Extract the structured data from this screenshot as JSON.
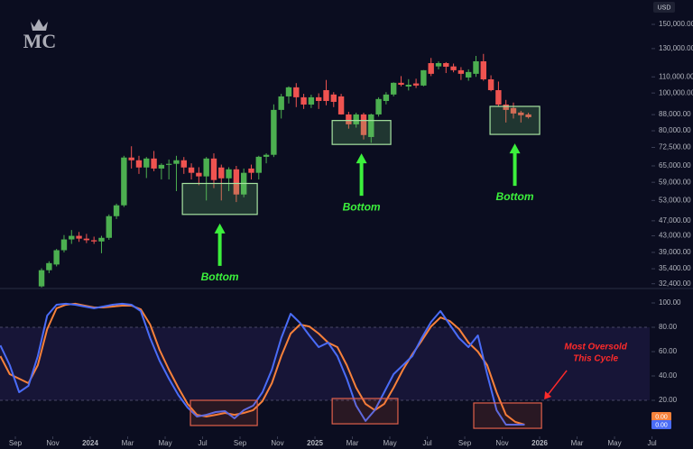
{
  "chart_data": [
    {
      "type": "candlestick",
      "logo": "MC",
      "currency": "USD",
      "log_scale": true,
      "colors": {
        "up": "#4caf50",
        "down": "#ef5350"
      },
      "xlim": [
        -4.82,
        32.19
      ],
      "ylim": [
        31500,
        166000
      ],
      "yticks": [
        {
          "value": 150000,
          "label": "150,000.00"
        },
        {
          "value": 130000,
          "label": "130,000.00"
        },
        {
          "value": 110000,
          "label": "110,000.00"
        },
        {
          "value": 100000,
          "label": "100,000.00"
        },
        {
          "value": 88000,
          "label": "88,000.00"
        },
        {
          "value": 80000,
          "label": "80,000.00"
        },
        {
          "value": 72500,
          "label": "72,500.00"
        },
        {
          "value": 65000,
          "label": "65,000.00"
        },
        {
          "value": 59000,
          "label": "59,000.00"
        },
        {
          "value": 53000,
          "label": "53,000.00"
        },
        {
          "value": 47000,
          "label": "47,000.00"
        },
        {
          "value": 43000,
          "label": "43,000.00"
        },
        {
          "value": 39000,
          "label": "39,000.00"
        },
        {
          "value": 35400,
          "label": "35,400.00"
        },
        {
          "value": 32400,
          "label": "32,400.00"
        }
      ],
      "x": [
        -2.6,
        -2.2,
        -1.8,
        -1.4,
        -1.0,
        -0.6,
        -0.2,
        0.2,
        0.6,
        1.0,
        1.4,
        1.8,
        2.2,
        2.6,
        3.0,
        3.4,
        3.8,
        4.2,
        4.6,
        5.0,
        5.4,
        5.8,
        6.2,
        6.6,
        7.0,
        7.4,
        7.8,
        8.2,
        8.6,
        9.0,
        9.4,
        9.8,
        10.2,
        10.6,
        11.0,
        11.4,
        11.8,
        12.2,
        12.6,
        13.0,
        13.4,
        13.8,
        14.2,
        14.6,
        15.0,
        15.4,
        15.8,
        16.2,
        16.6,
        17.0,
        17.4,
        17.8,
        18.2,
        18.6,
        19.0,
        19.4,
        19.8,
        20.2,
        20.6,
        21.0,
        21.4,
        21.8,
        22.2,
        22.6,
        23.0,
        23.4
      ],
      "open": [
        31900,
        35100,
        36300,
        39500,
        42100,
        43000,
        42300,
        41900,
        41600,
        42500,
        48300,
        51500,
        68300,
        67200,
        64400,
        67900,
        64000,
        65400,
        65800,
        67200,
        64400,
        62400,
        61100,
        67900,
        64400,
        60400,
        63700,
        54900,
        64000,
        62400,
        68600,
        69400,
        90500,
        98000,
        103400,
        97500,
        93400,
        97500,
        101700,
        99100,
        98000,
        88100,
        83100,
        88100,
        77100,
        88100,
        95400,
        99100,
        106200,
        103900,
        105800,
        104500,
        119300,
        117000,
        119300,
        117000,
        114400,
        109600,
        112000,
        120600,
        108400,
        101700,
        93400,
        91500,
        89100,
        88100
      ],
      "high": [
        35500,
        37000,
        39800,
        43200,
        44500,
        44000,
        43500,
        42800,
        43000,
        48800,
        52000,
        69000,
        73000,
        69000,
        68500,
        71000,
        66000,
        67500,
        69000,
        68500,
        66000,
        64500,
        68500,
        70000,
        65500,
        64500,
        65000,
        64000,
        65500,
        69000,
        70000,
        93500,
        99500,
        104000,
        106000,
        99500,
        99000,
        99800,
        108000,
        100500,
        99500,
        89500,
        89000,
        89000,
        88500,
        97500,
        100500,
        106500,
        110500,
        108500,
        108800,
        114500,
        123000,
        120500,
        120000,
        119000,
        116500,
        115000,
        124500,
        126000,
        111000,
        107000,
        96000,
        94500,
        90000,
        89000
      ],
      "low": [
        31700,
        34500,
        35900,
        39000,
        41000,
        41500,
        41200,
        41000,
        38800,
        42000,
        47500,
        51000,
        64000,
        62000,
        60500,
        63000,
        60000,
        60000,
        56000,
        62000,
        60000,
        58000,
        53000,
        57000,
        53000,
        56000,
        52500,
        54000,
        60000,
        60000,
        66000,
        68500,
        86000,
        94000,
        92000,
        91000,
        91500,
        91000,
        93000,
        92000,
        88000,
        81000,
        81500,
        76000,
        74500,
        87000,
        93500,
        98000,
        104000,
        101500,
        103000,
        104000,
        110500,
        115000,
        112500,
        113000,
        108000,
        107500,
        110000,
        107500,
        101000,
        92500,
        84000,
        86000,
        84000,
        86000
      ],
      "close": [
        35100,
        36600,
        39500,
        42100,
        43000,
        42300,
        41900,
        41600,
        42500,
        48300,
        51500,
        68300,
        67200,
        64400,
        67900,
        64000,
        65400,
        65800,
        67200,
        64400,
        62400,
        61100,
        67900,
        59800,
        60400,
        63700,
        54900,
        62400,
        62400,
        68600,
        69400,
        90500,
        98000,
        103400,
        97500,
        93400,
        97500,
        95400,
        95400,
        94900,
        88100,
        83100,
        88100,
        78000,
        88100,
        96500,
        99100,
        106200,
        105000,
        105000,
        104500,
        114400,
        112000,
        119300,
        116800,
        114400,
        112000,
        113200,
        120600,
        108400,
        101700,
        93400,
        90500,
        88600,
        87700,
        86700
      ],
      "annotations": [
        {
          "text": "Bottom",
          "color": "#3cf03c",
          "x": [
            4.92,
            8.92
          ],
          "y": [
            48800,
            58600
          ]
        },
        {
          "text": "Bottom",
          "color": "#3cf03c",
          "x": [
            12.92,
            16.05
          ],
          "y": [
            73800,
            85000
          ]
        },
        {
          "text": "Bottom",
          "color": "#3cf03c",
          "x": [
            21.35,
            24.0
          ],
          "y": [
            78300,
            92400
          ]
        }
      ]
    },
    {
      "type": "line",
      "xlim": [
        -4.82,
        32.19
      ],
      "ylim": [
        -9.63,
        111.85
      ],
      "yticks": [
        {
          "value": 100,
          "label": "100.00"
        },
        {
          "value": 80,
          "label": "80.00"
        },
        {
          "value": 60,
          "label": "60.00"
        },
        {
          "value": 40,
          "label": "40.00"
        },
        {
          "value": 20,
          "label": "20.00"
        }
      ],
      "band": [
        20,
        80
      ],
      "xticks": [
        {
          "value": -4,
          "label": "Sep"
        },
        {
          "value": -2,
          "label": "Nov"
        },
        {
          "value": 0,
          "label": "2024"
        },
        {
          "value": 2,
          "label": "Mar"
        },
        {
          "value": 4,
          "label": "May"
        },
        {
          "value": 6,
          "label": "Jul"
        },
        {
          "value": 8,
          "label": "Sep"
        },
        {
          "value": 10,
          "label": "Nov"
        },
        {
          "value": 12,
          "label": "2025"
        },
        {
          "value": 14,
          "label": "Mar"
        },
        {
          "value": 16,
          "label": "May"
        },
        {
          "value": 18,
          "label": "Jul"
        },
        {
          "value": 20,
          "label": "Sep"
        },
        {
          "value": 22,
          "label": "Nov"
        },
        {
          "value": 24,
          "label": "2026"
        },
        {
          "value": 26,
          "label": "Mar"
        },
        {
          "value": 28,
          "label": "May"
        },
        {
          "value": 30,
          "label": "Jul"
        }
      ],
      "x": [
        -4.8,
        -4.3,
        -3.8,
        -3.3,
        -2.8,
        -2.3,
        -1.8,
        -1.3,
        -0.8,
        -0.3,
        0.2,
        0.7,
        1.2,
        1.7,
        2.2,
        2.7,
        3.2,
        3.7,
        4.2,
        4.7,
        5.2,
        5.7,
        6.2,
        6.7,
        7.2,
        7.7,
        8.2,
        8.7,
        9.2,
        9.7,
        10.2,
        10.7,
        11.2,
        11.7,
        12.2,
        12.7,
        13.2,
        13.7,
        14.2,
        14.7,
        15.2,
        15.7,
        16.2,
        16.7,
        17.2,
        17.7,
        18.2,
        18.7,
        19.2,
        19.7,
        20.2,
        20.7,
        21.2,
        21.7,
        22.2,
        22.7,
        23.2
      ],
      "series": [
        {
          "color": "#f7813a",
          "values": [
            56.3,
            41.5,
            37.8,
            34.1,
            48.9,
            78.5,
            95.6,
            98.5,
            99.3,
            97.8,
            96.3,
            96.3,
            97.0,
            97.8,
            97.8,
            94.8,
            82.2,
            61.5,
            45.2,
            30.4,
            17.0,
            8.1,
            6.7,
            8.1,
            9.6,
            8.1,
            9.6,
            11.9,
            19.3,
            34.1,
            56.3,
            74.8,
            82.2,
            80.7,
            74.8,
            67.4,
            63.7,
            48.9,
            30.4,
            17.0,
            11.9,
            17.0,
            30.4,
            45.2,
            57.8,
            68.9,
            80.7,
            88.1,
            85.2,
            78.5,
            67.4,
            60.0,
            48.9,
            26.7,
            8.1,
            2.2,
            0
          ],
          "value_labels": [
            null,
            null,
            null,
            null,
            null,
            null,
            null,
            null,
            null,
            null,
            null,
            null,
            null,
            null,
            null,
            null,
            null,
            null,
            null,
            null,
            null,
            null,
            null,
            null,
            null,
            null,
            null,
            null,
            null,
            null,
            null,
            null,
            null,
            null,
            null,
            null,
            null,
            null,
            null,
            null,
            null,
            null,
            null,
            null,
            null,
            null,
            null,
            null,
            null,
            null,
            null,
            null,
            null,
            null,
            null,
            null,
            "0.00"
          ]
        },
        {
          "color": "#4a6cf7",
          "values": [
            65.2,
            48.9,
            26.7,
            31.9,
            56.3,
            89.6,
            98.5,
            99.3,
            98.5,
            97.0,
            95.6,
            97.0,
            98.5,
            99.3,
            98.5,
            93.3,
            71.1,
            52.6,
            37.8,
            24.4,
            14.1,
            6.7,
            8.1,
            10.4,
            11.1,
            5.2,
            11.9,
            15.6,
            26.7,
            45.2,
            71.1,
            91.1,
            83.7,
            73.3,
            63.7,
            67.4,
            56.3,
            37.8,
            15.6,
            3.0,
            11.9,
            26.7,
            41.5,
            48.9,
            56.3,
            71.1,
            84.4,
            93.3,
            82.2,
            71.1,
            63.7,
            73.3,
            41.5,
            11.9,
            0,
            0,
            0
          ],
          "value_labels": [
            null,
            null,
            null,
            null,
            null,
            null,
            null,
            null,
            null,
            null,
            null,
            null,
            null,
            null,
            null,
            null,
            null,
            null,
            null,
            null,
            null,
            null,
            null,
            null,
            null,
            null,
            null,
            null,
            null,
            null,
            null,
            null,
            null,
            null,
            null,
            null,
            null,
            null,
            null,
            null,
            null,
            null,
            null,
            null,
            null,
            null,
            null,
            null,
            null,
            null,
            null,
            null,
            null,
            null,
            null,
            null,
            "0.00"
          ]
        }
      ],
      "annotations": [
        {
          "color": "#e0604a",
          "x": [
            5.35,
            8.92
          ],
          "y": [
            -0.7,
            20
          ]
        },
        {
          "color": "#e0604a",
          "x": [
            12.92,
            16.43
          ],
          "y": [
            0.7,
            21.5
          ]
        },
        {
          "color": "#e0604a",
          "x": [
            20.48,
            24.1
          ],
          "y": [
            -3,
            17.8
          ],
          "text": [
            "Most Oversold",
            "This Cycle"
          ]
        }
      ]
    }
  ]
}
